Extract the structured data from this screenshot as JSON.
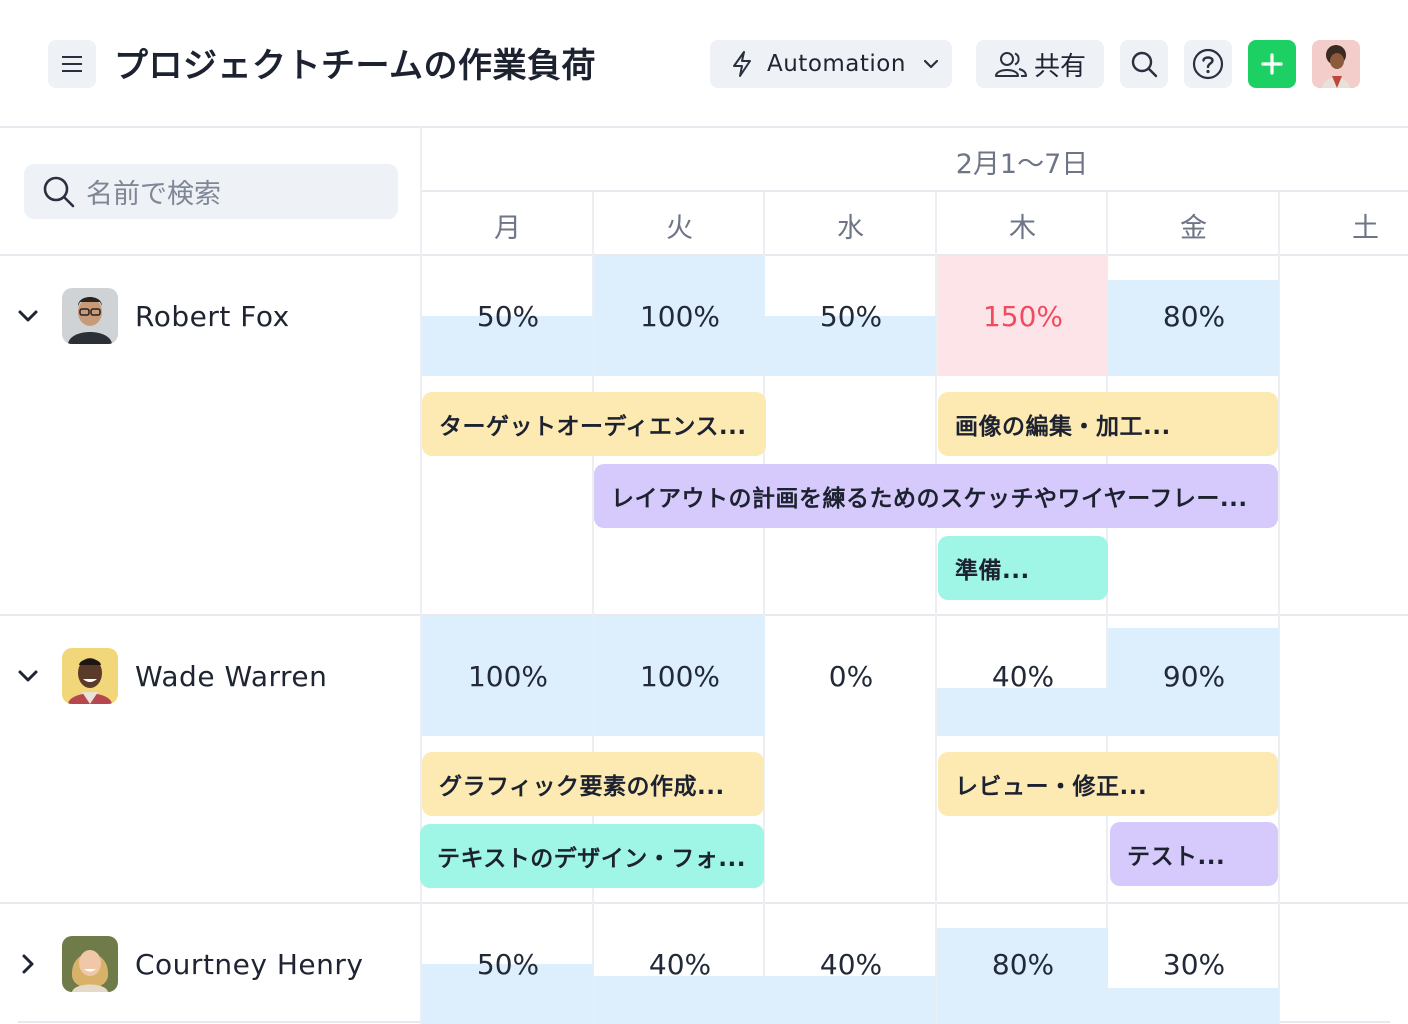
{
  "header": {
    "title": "プロジェクトチームの作業負荷",
    "automation_label": "Automation",
    "share_label": "共有"
  },
  "sidebar": {
    "search_placeholder": "名前で検索"
  },
  "calendar": {
    "range": "2月1〜7日",
    "days": [
      "月",
      "火",
      "水",
      "木",
      "金",
      "土"
    ]
  },
  "colors": {
    "capacity": "#ddeefc",
    "overload": "#fde4e8",
    "overload_text": "#f04b5f",
    "task_yellow": "#fdeab3",
    "task_purple": "#d6c9fb",
    "task_teal": "#9ff5e6",
    "add_button": "#1dd064"
  },
  "people": [
    {
      "name": "Robert Fox",
      "expanded": true,
      "load": [
        {
          "label": "50%",
          "value": 50
        },
        {
          "label": "100%",
          "value": 100
        },
        {
          "label": "50%",
          "value": 50
        },
        {
          "label": "150%",
          "value": 150
        },
        {
          "label": "80%",
          "value": 80
        }
      ],
      "tasks": [
        {
          "label": "ターゲットオーディエンス...",
          "color": "yellow"
        },
        {
          "label": "画像の編集・加工...",
          "color": "yellow"
        },
        {
          "label": "レイアウトの計画を練るためのスケッチやワイヤーフレー...",
          "color": "purple"
        },
        {
          "label": "準備...",
          "color": "teal"
        }
      ]
    },
    {
      "name": "Wade Warren",
      "expanded": true,
      "load": [
        {
          "label": "100%",
          "value": 100
        },
        {
          "label": "100%",
          "value": 100
        },
        {
          "label": "0%",
          "value": 0
        },
        {
          "label": "40%",
          "value": 40
        },
        {
          "label": "90%",
          "value": 90
        }
      ],
      "tasks": [
        {
          "label": "グラフィック要素の作成...",
          "color": "yellow"
        },
        {
          "label": "レビュー・修正...",
          "color": "yellow"
        },
        {
          "label": "テキストのデザイン・フォ...",
          "color": "teal"
        },
        {
          "label": "テスト...",
          "color": "purple"
        }
      ]
    },
    {
      "name": "Courtney Henry",
      "expanded": false,
      "load": [
        {
          "label": "50%",
          "value": 50
        },
        {
          "label": "40%",
          "value": 40
        },
        {
          "label": "40%",
          "value": 40
        },
        {
          "label": "80%",
          "value": 80
        },
        {
          "label": "30%",
          "value": 30
        }
      ],
      "tasks": []
    }
  ]
}
